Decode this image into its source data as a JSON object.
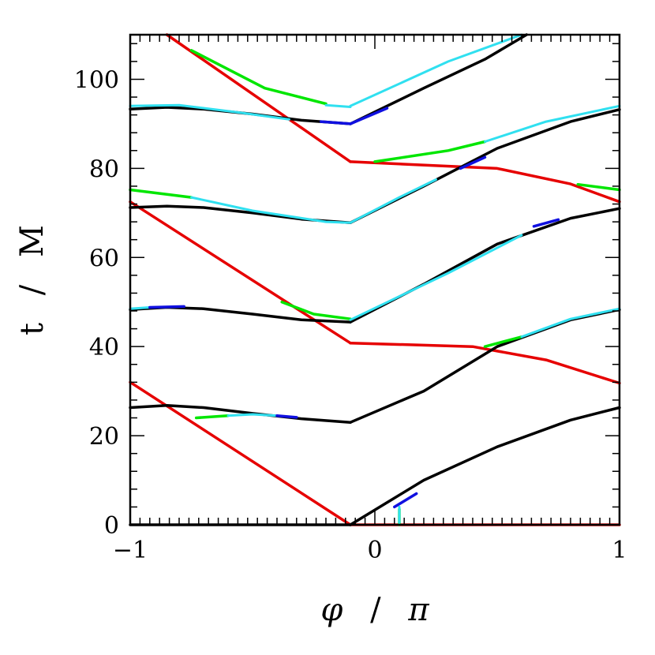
{
  "chart_data": {
    "type": "line",
    "xlabel": {
      "symbol": "φ",
      "slash": "/",
      "unit": "π"
    },
    "ylabel": {
      "var": "t",
      "slash": "/",
      "unit": "M"
    },
    "xlim": [
      -1,
      1
    ],
    "ylim": [
      0,
      110
    ],
    "xticks": [
      {
        "value": -1,
        "label": "−1"
      },
      {
        "value": 0,
        "label": "0"
      },
      {
        "value": 1,
        "label": "1"
      }
    ],
    "yticks": [
      {
        "value": 0,
        "label": "0"
      },
      {
        "value": 20,
        "label": "20"
      },
      {
        "value": 40,
        "label": "40"
      },
      {
        "value": 60,
        "label": "60"
      },
      {
        "value": 80,
        "label": "80"
      },
      {
        "value": 100,
        "label": "100"
      }
    ],
    "grid": false,
    "colors": {
      "black": "#000000",
      "red": "#e60000",
      "green": "#00e600",
      "blue": "#1010e0",
      "cyan": "#30e0f0",
      "orange": "#e07040"
    },
    "series": [
      {
        "color": "red",
        "points": [
          [
            -1,
            32
          ],
          [
            -0.1,
            0
          ]
        ]
      },
      {
        "color": "red",
        "points": [
          [
            -0.1,
            0
          ],
          [
            1,
            0
          ]
        ]
      },
      {
        "color": "red",
        "points": [
          [
            -1,
            72.5
          ],
          [
            -0.1,
            40.8
          ]
        ]
      },
      {
        "color": "red",
        "points": [
          [
            -0.1,
            40.8
          ],
          [
            0.4,
            40
          ],
          [
            0.7,
            37
          ],
          [
            1,
            31.8
          ]
        ]
      },
      {
        "color": "red",
        "points": [
          [
            -0.85,
            110
          ],
          [
            -0.1,
            81.5
          ]
        ]
      },
      {
        "color": "red",
        "points": [
          [
            -0.1,
            81.5
          ],
          [
            0.5,
            80
          ],
          [
            0.8,
            76.5
          ],
          [
            1,
            72.5
          ]
        ]
      },
      {
        "color": "black",
        "points": [
          [
            -1,
            0
          ],
          [
            -0.1,
            0
          ]
        ]
      },
      {
        "color": "black",
        "points": [
          [
            -0.1,
            0
          ],
          [
            0.2,
            10
          ],
          [
            0.5,
            17.5
          ],
          [
            0.8,
            23.5
          ],
          [
            1,
            26.3
          ]
        ]
      },
      {
        "color": "black",
        "points": [
          [
            -1,
            26.3
          ],
          [
            -0.85,
            26.8
          ],
          [
            -0.7,
            26.3
          ],
          [
            -0.5,
            25
          ],
          [
            -0.3,
            23.8
          ],
          [
            -0.1,
            23
          ]
        ]
      },
      {
        "color": "black",
        "points": [
          [
            -0.1,
            23
          ],
          [
            0.2,
            30
          ],
          [
            0.5,
            40
          ],
          [
            0.8,
            46
          ],
          [
            1,
            48.3
          ]
        ]
      },
      {
        "color": "black",
        "points": [
          [
            -1,
            48.3
          ],
          [
            -0.85,
            48.8
          ],
          [
            -0.7,
            48.5
          ],
          [
            -0.5,
            47.3
          ],
          [
            -0.3,
            46
          ],
          [
            -0.1,
            45.5
          ]
        ]
      },
      {
        "color": "black",
        "points": [
          [
            -0.1,
            45.5
          ],
          [
            0.2,
            54
          ],
          [
            0.5,
            63
          ],
          [
            0.8,
            68.8
          ],
          [
            1,
            71
          ]
        ]
      },
      {
        "color": "black",
        "points": [
          [
            -1,
            71.2
          ],
          [
            -0.85,
            71.5
          ],
          [
            -0.7,
            71.2
          ],
          [
            -0.5,
            70
          ],
          [
            -0.3,
            68.6
          ],
          [
            -0.1,
            67.8
          ]
        ]
      },
      {
        "color": "black",
        "points": [
          [
            -0.1,
            67.8
          ],
          [
            0.2,
            76
          ],
          [
            0.5,
            84.5
          ],
          [
            0.8,
            90.5
          ],
          [
            1,
            93.2
          ]
        ]
      },
      {
        "color": "black",
        "points": [
          [
            -1,
            93.3
          ],
          [
            -0.85,
            93.7
          ],
          [
            -0.7,
            93.3
          ],
          [
            -0.5,
            92.2
          ],
          [
            -0.3,
            90.8
          ],
          [
            -0.1,
            90
          ]
        ]
      },
      {
        "color": "black",
        "points": [
          [
            -0.1,
            90
          ],
          [
            0.2,
            98
          ],
          [
            0.45,
            104.5
          ],
          [
            0.62,
            110
          ]
        ]
      },
      {
        "color": "green",
        "points": [
          [
            -0.73,
            24
          ],
          [
            -0.6,
            24.5
          ]
        ]
      },
      {
        "color": "green",
        "points": [
          [
            -0.38,
            50
          ],
          [
            -0.25,
            47.3
          ],
          [
            -0.1,
            46.2
          ]
        ]
      },
      {
        "color": "green",
        "points": [
          [
            -1,
            75.2
          ],
          [
            -0.75,
            73.5
          ]
        ]
      },
      {
        "color": "green",
        "points": [
          [
            -0.75,
            106.5
          ],
          [
            -0.45,
            98
          ],
          [
            -0.2,
            94.5
          ]
        ]
      },
      {
        "color": "green",
        "points": [
          [
            0,
            81.5
          ],
          [
            0.3,
            84
          ],
          [
            0.45,
            86
          ]
        ]
      },
      {
        "color": "green",
        "points": [
          [
            0.45,
            40
          ],
          [
            0.6,
            42.2
          ]
        ]
      },
      {
        "color": "green",
        "points": [
          [
            0.83,
            76.4
          ],
          [
            1,
            75.2
          ]
        ]
      },
      {
        "color": "green",
        "points": [
          [
            0.1,
            0
          ],
          [
            0.1,
            3.5
          ]
        ]
      },
      {
        "color": "cyan",
        "points": [
          [
            -0.6,
            24.5
          ],
          [
            -0.5,
            24.8
          ],
          [
            -0.4,
            24.5
          ]
        ]
      },
      {
        "color": "cyan",
        "points": [
          [
            -1,
            48.5
          ],
          [
            -0.92,
            48.8
          ]
        ]
      },
      {
        "color": "cyan",
        "points": [
          [
            -0.1,
            46
          ],
          [
            0.3,
            56.5
          ],
          [
            0.6,
            65
          ]
        ]
      },
      {
        "color": "cyan",
        "points": [
          [
            -0.75,
            73.5
          ],
          [
            -0.5,
            70.5
          ],
          [
            -0.2,
            68
          ],
          [
            -0.1,
            67.8
          ]
        ]
      },
      {
        "color": "cyan",
        "points": [
          [
            -0.1,
            67.8
          ],
          [
            0.1,
            73.5
          ],
          [
            0.25,
            77.5
          ]
        ]
      },
      {
        "color": "cyan",
        "points": [
          [
            -1,
            94
          ],
          [
            -0.8,
            94.2
          ],
          [
            -0.55,
            92.5
          ],
          [
            -0.35,
            91
          ]
        ]
      },
      {
        "color": "cyan",
        "points": [
          [
            -0.2,
            94.2
          ],
          [
            -0.1,
            93.8
          ]
        ]
      },
      {
        "color": "cyan",
        "points": [
          [
            -0.1,
            94
          ],
          [
            0.3,
            104
          ],
          [
            0.6,
            110
          ]
        ]
      },
      {
        "color": "cyan",
        "points": [
          [
            0.45,
            86
          ],
          [
            0.7,
            90.5
          ],
          [
            1,
            94
          ]
        ]
      },
      {
        "color": "cyan",
        "points": [
          [
            0.6,
            42.2
          ],
          [
            0.8,
            46.2
          ],
          [
            1,
            48.5
          ]
        ]
      },
      {
        "color": "cyan",
        "points": [
          [
            0.1,
            0.5
          ],
          [
            0.1,
            4
          ]
        ]
      },
      {
        "color": "blue",
        "points": [
          [
            -0.92,
            48.8
          ],
          [
            -0.78,
            49
          ]
        ]
      },
      {
        "color": "blue",
        "points": [
          [
            -0.4,
            24.5
          ],
          [
            -0.32,
            24.1
          ]
        ]
      },
      {
        "color": "blue",
        "points": [
          [
            -0.22,
            90.5
          ],
          [
            -0.1,
            90
          ]
        ]
      },
      {
        "color": "blue",
        "points": [
          [
            -0.1,
            90
          ],
          [
            0.05,
            93.5
          ]
        ]
      },
      {
        "color": "blue",
        "points": [
          [
            0.35,
            80
          ],
          [
            0.45,
            82.5
          ]
        ]
      },
      {
        "color": "blue",
        "points": [
          [
            0.65,
            67
          ],
          [
            0.75,
            68.5
          ]
        ]
      },
      {
        "color": "blue",
        "points": [
          [
            0.08,
            4
          ],
          [
            0.17,
            7
          ]
        ]
      }
    ]
  }
}
